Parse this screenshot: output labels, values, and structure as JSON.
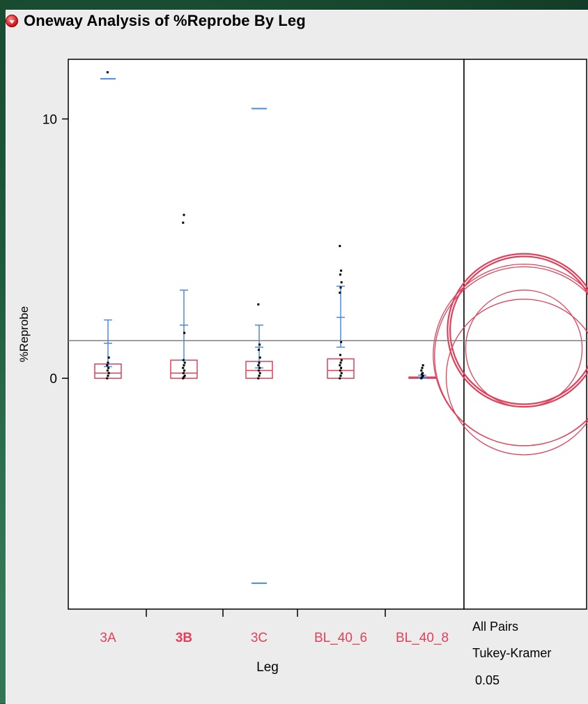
{
  "header": {
    "title": "Oneway Analysis of %Reprobe By Leg"
  },
  "colors": {
    "box": "#e0405a",
    "whisker": "#4a8ae0",
    "points": "#000000",
    "circles": "#e0405a",
    "grand_mean": "#808080",
    "highlight_category": "#e0405a"
  },
  "chart_data": {
    "type": "box",
    "title": "Oneway Analysis of %Reprobe By Leg",
    "xlabel": "Leg",
    "ylabel": "%Reprobe",
    "ylim": [
      -8.9,
      12.3
    ],
    "yticks": [
      0,
      10
    ],
    "grid": false,
    "grand_mean": 1.45,
    "categories": [
      "3A",
      "3B",
      "3C",
      "BL_40_6",
      "BL_40_8"
    ],
    "bold_category": "3B",
    "groups": [
      {
        "name": "3A",
        "box": {
          "q1": 0.0,
          "median": 0.2,
          "q3": 0.55
        },
        "mean_ci": {
          "upper": 2.25,
          "mean": 1.35,
          "lower": 0.45
        },
        "extreme_markers": [
          11.55
        ],
        "points": [
          0.0,
          0.1,
          0.2,
          0.3,
          0.4,
          0.5,
          0.6,
          0.8,
          11.8
        ]
      },
      {
        "name": "3B",
        "box": {
          "q1": 0.0,
          "median": 0.2,
          "q3": 0.7
        },
        "mean_ci": {
          "upper": 3.4,
          "mean": 2.05,
          "lower": 0.7
        },
        "extreme_markers": [],
        "points": [
          0.0,
          0.05,
          0.1,
          0.2,
          0.3,
          0.4,
          0.5,
          0.6,
          0.7,
          1.75,
          6.0,
          6.3
        ]
      },
      {
        "name": "3C",
        "box": {
          "q1": 0.0,
          "median": 0.3,
          "q3": 0.65
        },
        "mean_ci": {
          "upper": 2.05,
          "mean": 1.2,
          "lower": 0.4
        },
        "extreme_markers": [
          10.4,
          -7.9
        ],
        "points": [
          0.0,
          0.1,
          0.2,
          0.3,
          0.4,
          0.5,
          0.6,
          0.8,
          1.1,
          1.3,
          2.85
        ]
      },
      {
        "name": "BL_40_6",
        "box": {
          "q1": 0.0,
          "median": 0.3,
          "q3": 0.75
        },
        "mean_ci": {
          "upper": 3.55,
          "mean": 2.35,
          "lower": 1.2
        },
        "extreme_markers": [],
        "points": [
          0.0,
          0.1,
          0.2,
          0.3,
          0.4,
          0.5,
          0.6,
          0.7,
          0.9,
          1.4,
          3.3,
          3.5,
          3.7,
          4.0,
          4.15,
          5.1
        ]
      },
      {
        "name": "BL_40_8",
        "box": {
          "q1": 0.0,
          "median": 0.02,
          "q3": 0.05
        },
        "mean_ci": {
          "upper": 0.12,
          "mean": 0.05,
          "lower": 0.0
        },
        "extreme_markers": [],
        "points": [
          0.0,
          0.05,
          0.1,
          0.15,
          0.2,
          0.3,
          0.4,
          0.5
        ]
      }
    ],
    "comparison_circles": [
      {
        "center": 1.85,
        "radius": 2.95
      },
      {
        "center": 1.85,
        "radius": 2.85
      },
      {
        "center": 0.9,
        "radius": 3.5
      },
      {
        "center": 0.85,
        "radius": 3.45
      },
      {
        "center": 1.15,
        "radius": 2.25
      },
      {
        "center": 0.05,
        "radius": 3.0
      }
    ],
    "comparison_labels": [
      "All Pairs",
      "Tukey-Kramer",
      "0.05"
    ]
  }
}
